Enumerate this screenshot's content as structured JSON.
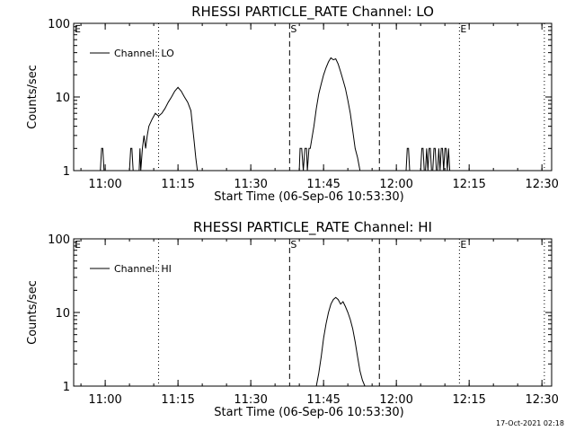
{
  "footer_timestamp": "17-Oct-2021 02:18",
  "chart_data": [
    {
      "type": "line",
      "title": "RHESSI PARTICLE_RATE Channel: LO",
      "xlabel": "Start Time (06-Sep-06 10:53:30)",
      "ylabel": "Counts/sec",
      "legend": {
        "label": "Channel: LO",
        "placement": "top-left"
      },
      "y_scale": "log",
      "ylim": [
        1,
        100
      ],
      "xlim": [
        "10:53:30",
        "12:32:00"
      ],
      "x_ticks": [
        "11:00",
        "11:15",
        "11:30",
        "11:45",
        "12:00",
        "12:15",
        "12:30"
      ],
      "y_ticks": [
        "1",
        "10",
        "100"
      ],
      "markers": [
        {
          "label": "E",
          "time": "10:53:30",
          "style": "dotted"
        },
        {
          "label": "",
          "time": "11:11:00",
          "style": "dotted"
        },
        {
          "label": "S",
          "time": "11:38:00",
          "style": "dashed"
        },
        {
          "label": "",
          "time": "11:56:30",
          "style": "dashed"
        },
        {
          "label": "E",
          "time": "12:13:00",
          "style": "dotted"
        },
        {
          "label": "",
          "time": "12:30:30",
          "style": "dotted"
        }
      ],
      "series": [
        {
          "x": [
            "10:53:30",
            "10:59:00",
            "10:59:15",
            "10:59:30",
            "10:59:45",
            "11:05:00",
            "11:05:15",
            "11:05:30",
            "11:05:45",
            "11:07:00",
            "11:07:10",
            "11:07:20",
            "11:07:40",
            "11:08:00",
            "11:08:20",
            "11:08:40",
            "11:09:00",
            "11:09:40",
            "11:10:20",
            "11:11:00",
            "11:11:40",
            "11:12:20",
            "11:13:00",
            "11:13:40",
            "11:14:20",
            "11:15:00",
            "11:15:40",
            "11:16:20",
            "11:17:00",
            "11:17:40",
            "11:18:00",
            "11:18:20",
            "11:18:40",
            "11:19:00",
            "11:19:15",
            "11:25:00",
            "11:38:00",
            "11:40:00",
            "11:40:10",
            "11:40:30",
            "11:40:50",
            "11:41:10",
            "11:41:30",
            "11:41:40",
            "11:42:00",
            "11:42:15",
            "11:42:30",
            "11:43:00",
            "11:43:30",
            "11:44:00",
            "11:44:30",
            "11:45:00",
            "11:45:30",
            "11:46:00",
            "11:46:30",
            "11:47:00",
            "11:47:30",
            "11:48:00",
            "11:48:30",
            "11:49:00",
            "11:49:30",
            "11:50:00",
            "11:50:30",
            "11:51:00",
            "11:51:30",
            "11:52:00",
            "11:52:30",
            "11:53:00",
            "11:53:30",
            "11:54:00",
            "11:54:30",
            "11:55:00",
            "11:55:20",
            "11:55:40",
            "11:56:00",
            "11:58:00",
            "12:02:00",
            "12:02:15",
            "12:02:30",
            "12:02:45",
            "12:05:00",
            "12:05:15",
            "12:05:30",
            "12:05:45",
            "12:06:00",
            "12:06:15",
            "12:06:30",
            "12:06:45",
            "12:07:00",
            "12:07:15",
            "12:07:30",
            "12:07:45",
            "12:08:00",
            "12:08:15",
            "12:08:30",
            "12:08:45",
            "12:09:00",
            "12:09:15",
            "12:09:30",
            "12:09:45",
            "12:10:00",
            "12:10:15",
            "12:10:30",
            "12:10:45",
            "12:11:00",
            "12:32:00"
          ],
          "values": [
            1,
            1,
            2,
            2,
            1,
            1,
            2,
            2,
            1,
            1,
            2,
            1,
            2,
            3,
            2,
            3,
            4,
            5,
            6,
            5.5,
            6,
            7,
            8.5,
            10,
            12,
            13.5,
            12,
            10,
            8.5,
            6.5,
            4,
            2.5,
            1.5,
            1,
            1,
            1,
            1,
            1,
            2,
            2,
            1,
            2,
            2,
            1,
            2,
            2,
            2.5,
            4,
            7,
            11,
            15,
            20,
            25,
            30,
            34,
            32,
            33,
            28,
            22,
            17,
            13,
            9,
            6,
            3.5,
            2,
            1.5,
            1,
            1,
            1,
            1,
            1,
            1,
            1,
            1,
            1,
            1,
            1,
            2,
            2,
            1,
            1,
            2,
            2,
            1,
            1,
            2,
            1,
            2,
            2,
            1,
            1,
            2,
            2,
            1,
            1,
            2,
            1,
            2,
            2,
            1,
            2,
            2,
            1,
            2,
            1,
            1
          ]
        }
      ]
    },
    {
      "type": "line",
      "title": "RHESSI PARTICLE_RATE Channel: HI",
      "xlabel": "Start Time (06-Sep-06 10:53:30)",
      "ylabel": "Counts/sec",
      "legend": {
        "label": "Channel: HI",
        "placement": "top-left"
      },
      "y_scale": "log",
      "ylim": [
        1,
        100
      ],
      "xlim": [
        "10:53:30",
        "12:32:00"
      ],
      "x_ticks": [
        "11:00",
        "11:15",
        "11:30",
        "11:45",
        "12:00",
        "12:15",
        "12:30"
      ],
      "y_ticks": [
        "1",
        "10",
        "100"
      ],
      "markers": [
        {
          "label": "E",
          "time": "10:53:30",
          "style": "dotted"
        },
        {
          "label": "",
          "time": "11:11:00",
          "style": "dotted"
        },
        {
          "label": "S",
          "time": "11:38:00",
          "style": "dashed"
        },
        {
          "label": "",
          "time": "11:56:30",
          "style": "dashed"
        },
        {
          "label": "E",
          "time": "12:13:00",
          "style": "dotted"
        },
        {
          "label": "",
          "time": "12:30:30",
          "style": "dotted"
        }
      ],
      "series": [
        {
          "x": [
            "10:53:30",
            "11:43:30",
            "11:44:00",
            "11:44:30",
            "11:45:00",
            "11:45:30",
            "11:46:00",
            "11:46:30",
            "11:47:00",
            "11:47:30",
            "11:48:00",
            "11:48:30",
            "11:49:00",
            "11:49:30",
            "11:50:00",
            "11:50:30",
            "11:51:00",
            "11:51:30",
            "11:52:00",
            "11:52:30",
            "11:53:00",
            "11:53:30",
            "11:54:00",
            "11:54:30",
            "12:32:00"
          ],
          "values": [
            1,
            1,
            1.5,
            2.5,
            4.5,
            7,
            10,
            13,
            15,
            16,
            15,
            13,
            14,
            12,
            10,
            8,
            6,
            4,
            2.5,
            1.6,
            1.2,
            1,
            1,
            1,
            1
          ]
        }
      ]
    }
  ]
}
